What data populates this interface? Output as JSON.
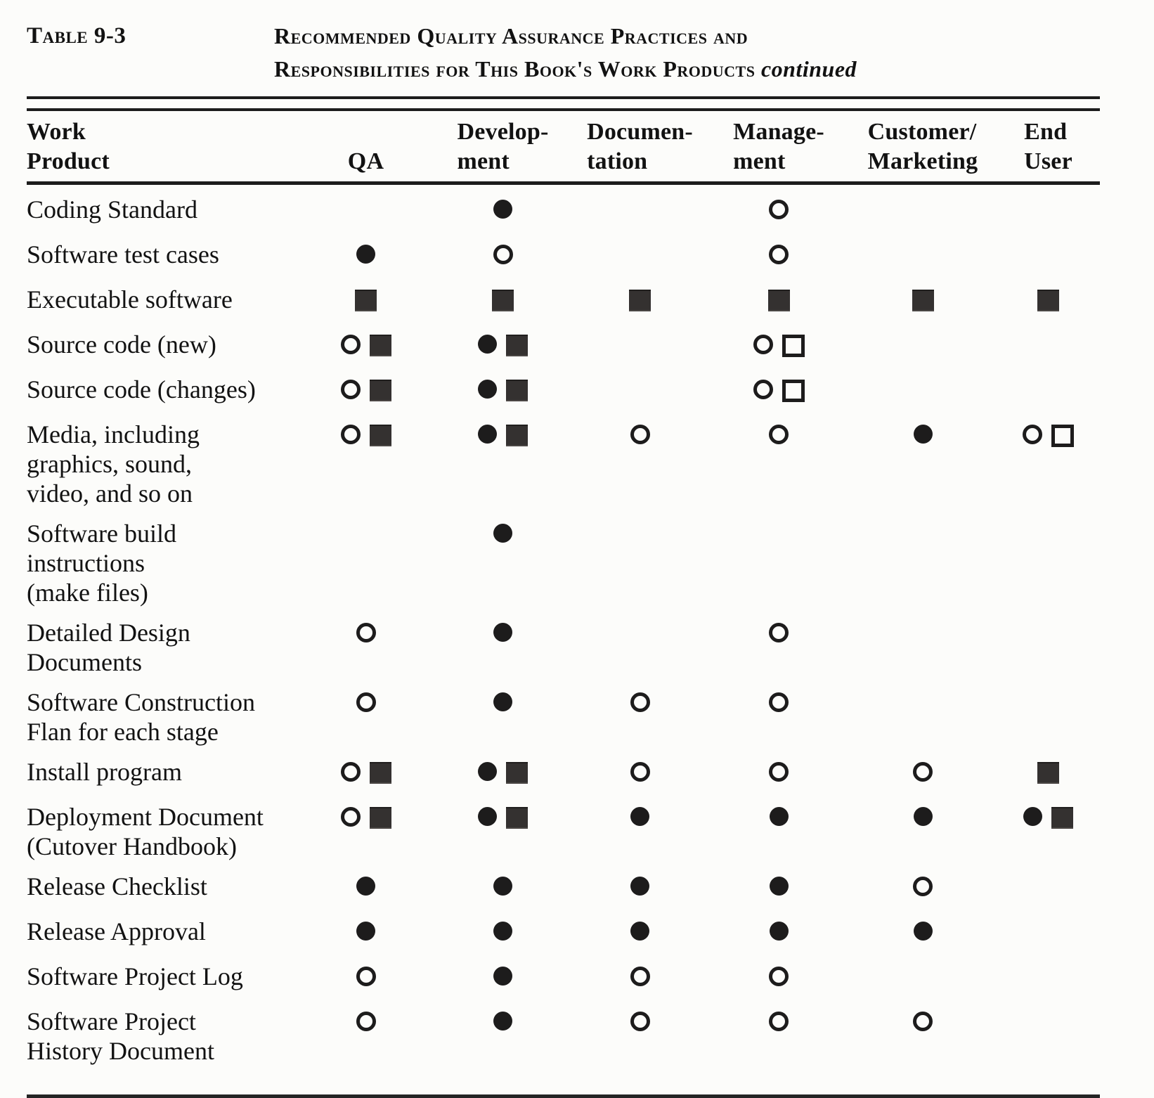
{
  "title": {
    "label": "Table 9-3",
    "heading_line1": "Recommended Quality Assurance Practices and",
    "heading_line2": "Responsibilities for This Book's Work Products",
    "heading_suffix": "continued"
  },
  "ink_color": "#1c1c1c",
  "background_color": "#fcfcfa",
  "symbol_glyphs": {
    "filled-circle": "●",
    "open-circle": "○",
    "filled-square": "■",
    "open-square": "□"
  },
  "header": {
    "cells": [
      {
        "id": "work-product",
        "lines": [
          "Work",
          "Product"
        ]
      },
      {
        "id": "qa",
        "lines": [
          "QA"
        ]
      },
      {
        "id": "development",
        "lines": [
          "Develop-",
          "ment"
        ]
      },
      {
        "id": "documentation",
        "lines": [
          "Documen-",
          "tation"
        ]
      },
      {
        "id": "management",
        "lines": [
          "Manage-",
          "ment"
        ]
      },
      {
        "id": "customer-marketing",
        "lines": [
          "Customer/",
          "Marketing"
        ]
      },
      {
        "id": "end-user",
        "lines": [
          "End",
          "User"
        ]
      }
    ]
  },
  "column_order": [
    "qa",
    "development",
    "documentation",
    "management",
    "customer-marketing",
    "end-user"
  ],
  "rows": [
    {
      "name_lines": [
        "Coding Standard"
      ],
      "cells": [
        [],
        [
          "filled-circle"
        ],
        [],
        [
          "open-circle"
        ],
        [],
        []
      ]
    },
    {
      "name_lines": [
        "Software test cases"
      ],
      "cells": [
        [
          "filled-circle"
        ],
        [
          "open-circle"
        ],
        [],
        [
          "open-circle"
        ],
        [],
        []
      ]
    },
    {
      "name_lines": [
        "Executable software"
      ],
      "cells": [
        [
          "filled-square"
        ],
        [
          "filled-square"
        ],
        [
          "filled-square"
        ],
        [
          "filled-square"
        ],
        [
          "filled-square"
        ],
        [
          "filled-square"
        ]
      ]
    },
    {
      "name_lines": [
        "Source code (new)"
      ],
      "cells": [
        [
          "open-circle",
          "filled-square"
        ],
        [
          "filled-circle",
          "filled-square"
        ],
        [],
        [
          "open-circle",
          "open-square"
        ],
        [],
        []
      ]
    },
    {
      "name_lines": [
        "Source code (changes)"
      ],
      "cells": [
        [
          "open-circle",
          "filled-square"
        ],
        [
          "filled-circle",
          "filled-square"
        ],
        [],
        [
          "open-circle",
          "open-square"
        ],
        [],
        []
      ]
    },
    {
      "name_lines": [
        "Media, including",
        "graphics, sound,",
        "video, and so on"
      ],
      "cells": [
        [
          "open-circle",
          "filled-square"
        ],
        [
          "filled-circle",
          "filled-square"
        ],
        [
          "open-circle"
        ],
        [
          "open-circle"
        ],
        [
          "filled-circle"
        ],
        [
          "open-circle",
          "open-square"
        ]
      ]
    },
    {
      "name_lines": [
        "Software build",
        "instructions",
        "(make files)"
      ],
      "cells": [
        [],
        [
          "filled-circle"
        ],
        [],
        [],
        [],
        []
      ]
    },
    {
      "name_lines": [
        "Detailed Design",
        "Documents"
      ],
      "cells": [
        [
          "open-circle"
        ],
        [
          "filled-circle"
        ],
        [],
        [
          "open-circle"
        ],
        [],
        []
      ]
    },
    {
      "name_lines": [
        "Software Construction",
        "Flan for each stage"
      ],
      "cells": [
        [
          "open-circle"
        ],
        [
          "filled-circle"
        ],
        [
          "open-circle"
        ],
        [
          "open-circle"
        ],
        [],
        []
      ]
    },
    {
      "name_lines": [
        "Install program"
      ],
      "cells": [
        [
          "open-circle",
          "filled-square"
        ],
        [
          "filled-circle",
          "filled-square"
        ],
        [
          "open-circle"
        ],
        [
          "open-circle"
        ],
        [
          "open-circle"
        ],
        [
          "filled-square"
        ]
      ]
    },
    {
      "name_lines": [
        "Deployment Document",
        "(Cutover Handbook)"
      ],
      "cells": [
        [
          "open-circle",
          "filled-square"
        ],
        [
          "filled-circle",
          "filled-square"
        ],
        [
          "filled-circle"
        ],
        [
          "filled-circle"
        ],
        [
          "filled-circle"
        ],
        [
          "filled-circle",
          "filled-square"
        ]
      ]
    },
    {
      "name_lines": [
        "Release Checklist"
      ],
      "cells": [
        [
          "filled-circle"
        ],
        [
          "filled-circle"
        ],
        [
          "filled-circle"
        ],
        [
          "filled-circle"
        ],
        [
          "open-circle"
        ],
        []
      ]
    },
    {
      "name_lines": [
        "Release Approval"
      ],
      "cells": [
        [
          "filled-circle"
        ],
        [
          "filled-circle"
        ],
        [
          "filled-circle"
        ],
        [
          "filled-circle"
        ],
        [
          "filled-circle"
        ],
        []
      ]
    },
    {
      "name_lines": [
        "Software Project Log"
      ],
      "cells": [
        [
          "open-circle"
        ],
        [
          "filled-circle"
        ],
        [
          "open-circle"
        ],
        [
          "open-circle"
        ],
        [],
        []
      ]
    },
    {
      "name_lines": [
        "Software Project",
        "History Document"
      ],
      "cells": [
        [
          "open-circle"
        ],
        [
          "filled-circle"
        ],
        [
          "open-circle"
        ],
        [
          "open-circle"
        ],
        [
          "open-circle"
        ],
        []
      ]
    }
  ]
}
